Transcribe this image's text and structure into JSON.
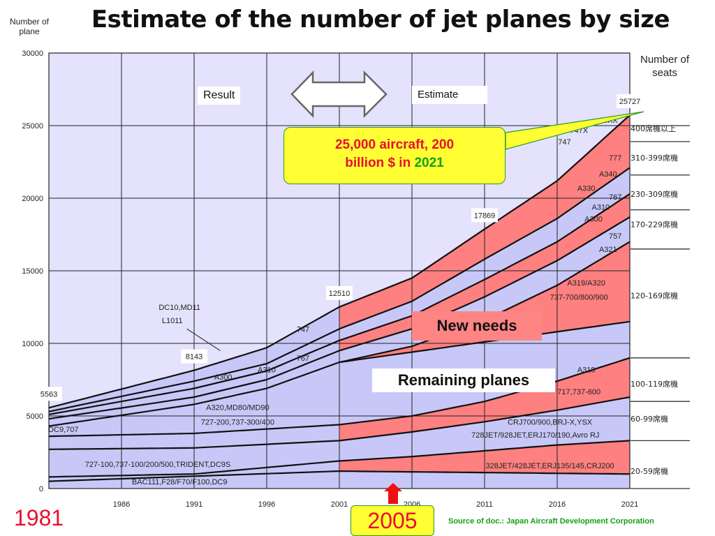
{
  "title": "Estimate of the number of jet planes by size",
  "y_axis_label": "Number of plane",
  "seats_header": "Number of seats",
  "result_label": "Result",
  "estimate_label": "Estimate",
  "callout": {
    "line1": "25,000 aircraft, 200",
    "line2_prefix": "billion $ in ",
    "line2_year": "2021"
  },
  "new_needs_label": "New needs",
  "remaining_label": "Remaining planes",
  "year_start": "1981",
  "year_marker": "2005",
  "source": "Source of doc.: Japan Aircraft Development Corporation",
  "colors": {
    "remaining_fill": "#c8c8f8",
    "new_needs_fill": "#ff8080",
    "plot_bg": "#e4e2fc",
    "callout_bg": "#ffff33",
    "arrow_red": "#ee1111"
  },
  "chart_data": {
    "type": "area",
    "stacked": true,
    "x": [
      1981,
      1986,
      1991,
      1996,
      2001,
      2006,
      2011,
      2016,
      2021
    ],
    "x_tick_labels": [
      "1986",
      "1991",
      "1996",
      "2001",
      "2006",
      "2011",
      "2016",
      "2021"
    ],
    "y_ticks": [
      0,
      5000,
      10000,
      15000,
      20000,
      25000,
      30000
    ],
    "ylim": [
      0,
      30000
    ],
    "xlim": [
      1981,
      2021
    ],
    "split_year": 2005,
    "grid": true,
    "totals_labels": [
      {
        "x": 1981,
        "y": 5563,
        "text": "5563"
      },
      {
        "x": 1991,
        "y": 8143,
        "text": "8143"
      },
      {
        "x": 2001,
        "y": 12510,
        "text": "12510"
      },
      {
        "x": 2011,
        "y": 17869,
        "text": "17869"
      },
      {
        "x": 2021,
        "y": 25727,
        "text": "25727"
      }
    ],
    "boundaries": [
      {
        "name": "20-59",
        "x": [
          1981,
          2001,
          2021
        ],
        "y": [
          500,
          1200,
          1000
        ]
      },
      {
        "name": "20-59 total",
        "x": [
          1981,
          1991,
          2001,
          2006,
          2011,
          2016,
          2021
        ],
        "y": [
          800,
          1000,
          1900,
          2200,
          2600,
          3000,
          3300
        ]
      },
      {
        "name": "60-99",
        "x": [
          1981,
          1991,
          2001,
          2006,
          2011,
          2016,
          2021
        ],
        "y": [
          2700,
          2800,
          3300,
          3900,
          4600,
          5400,
          6300
        ]
      },
      {
        "name": "100-119",
        "x": [
          1981,
          1991,
          2001,
          2006,
          2011,
          2016,
          2021
        ],
        "y": [
          3600,
          3800,
          4400,
          5000,
          6000,
          7400,
          9000
        ]
      },
      {
        "name": "100-119 remaining",
        "x": [
          2001,
          2021
        ],
        "y": [
          8700,
          11500
        ]
      },
      {
        "name": "120-169",
        "x": [
          1981,
          1991,
          1996,
          2001,
          2006,
          2011,
          2016,
          2021
        ],
        "y": [
          4300,
          5800,
          6900,
          8700,
          9800,
          11600,
          14000,
          17000
        ]
      },
      {
        "name": "170-229",
        "x": [
          1981,
          1991,
          1996,
          2001,
          2006,
          2011,
          2016,
          2021
        ],
        "y": [
          4800,
          6300,
          7500,
          9500,
          11000,
          13200,
          15700,
          18700
        ]
      },
      {
        "name": "230-309",
        "x": [
          1981,
          1991,
          1996,
          2001,
          2006,
          2011,
          2016,
          2021
        ],
        "y": [
          5100,
          6900,
          8100,
          10200,
          11900,
          14400,
          17000,
          20300
        ]
      },
      {
        "name": "310-399",
        "x": [
          1981,
          1991,
          1996,
          2001,
          2006,
          2011,
          2016,
          2021
        ],
        "y": [
          5300,
          7400,
          8600,
          11000,
          12900,
          15800,
          18600,
          22100
        ]
      },
      {
        "name": "400+",
        "x": [
          1981,
          1991,
          1996,
          2001,
          2006,
          2011,
          2016,
          2021
        ],
        "y": [
          5563,
          8143,
          9700,
          12510,
          14500,
          17869,
          21200,
          25727
        ]
      }
    ],
    "series_labels": [
      {
        "text": "727-100,737-100/200/500,TRIDENT,DC9S",
        "x": 1988.5,
        "y": 1500
      },
      {
        "text": "BAC111,F28/F70/F100,DC9",
        "x": 1990,
        "y": 300
      },
      {
        "text": "A320,MD80/MD90",
        "x": 1994,
        "y": 5400
      },
      {
        "text": "727-200,737-300/400",
        "x": 1994,
        "y": 4400
      },
      {
        "text": "DC9,707",
        "x": 1982,
        "y": 3900
      },
      {
        "text": "A300",
        "x": 1993,
        "y": 7500
      },
      {
        "text": "A310",
        "x": 1996,
        "y": 8000
      },
      {
        "text": "767",
        "x": 1998.5,
        "y": 8800
      },
      {
        "text": "747",
        "x": 1998.5,
        "y": 10800
      },
      {
        "text": "DC10,MD11",
        "x": 1990,
        "y": 12300
      },
      {
        "text": "L1011",
        "x": 1989.5,
        "y": 11400
      },
      {
        "text": "A318",
        "x": 2018,
        "y": 8000
      },
      {
        "text": "717,737-600",
        "x": 2017.5,
        "y": 6500
      },
      {
        "text": "CRJ700/900,BRJ-X,YSX",
        "x": 2015.5,
        "y": 4400
      },
      {
        "text": "728JET/928JET,ERJ170/190,Avro RJ",
        "x": 2014.5,
        "y": 3500
      },
      {
        "text": "328JET/428JET,ERJ135/145,CRJ200",
        "x": 2015.5,
        "y": 1400
      },
      {
        "text": "A319/A320",
        "x": 2018,
        "y": 14000
      },
      {
        "text": "737-700/800/900",
        "x": 2017.5,
        "y": 13000
      },
      {
        "text": "757",
        "x": 2020,
        "y": 17200
      },
      {
        "text": "A321",
        "x": 2019.5,
        "y": 16300
      },
      {
        "text": "767",
        "x": 2020,
        "y": 19900
      },
      {
        "text": "A310",
        "x": 2019,
        "y": 19200
      },
      {
        "text": "A300",
        "x": 2018.5,
        "y": 18400
      },
      {
        "text": "A340",
        "x": 2019.5,
        "y": 21500
      },
      {
        "text": "A330",
        "x": 2018,
        "y": 20500
      },
      {
        "text": "777",
        "x": 2020,
        "y": 22600
      },
      {
        "text": "747X",
        "x": 2017.5,
        "y": 24500
      },
      {
        "text": "747",
        "x": 2016.5,
        "y": 23700
      },
      {
        "text": "A3XX",
        "x": 2019.5,
        "y": 25200
      }
    ],
    "seat_classes": [
      {
        "text": "400席機以上",
        "y": 24800
      },
      {
        "text": "310-399席機",
        "y": 22800
      },
      {
        "text": "230-309席機",
        "y": 20300
      },
      {
        "text": "170-229席機",
        "y": 18200
      },
      {
        "text": "120-169席機",
        "y": 13300
      },
      {
        "text": "100-119席機",
        "y": 7200
      },
      {
        "text": "60-99席機",
        "y": 4800
      },
      {
        "text": "20-59席機",
        "y": 1200
      }
    ]
  }
}
